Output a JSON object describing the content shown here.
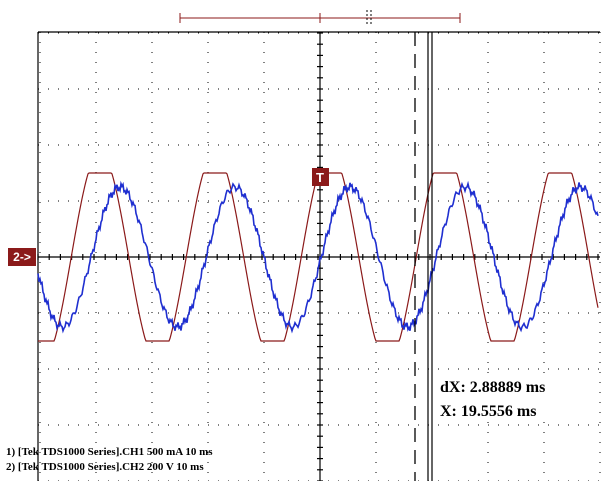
{
  "screen": {
    "channel_marker": "2->",
    "trigger_marker": "T",
    "cursor_delta": "dX: 2.88889 ms",
    "cursor_x": "X: 19.5556 ms",
    "channels": [
      "1) [Tek TDS1000 Series].CH1  500 mA   10 ms",
      "2) [Tek TDS1000 Series].CH2  200  V    10 ms"
    ]
  }
}
